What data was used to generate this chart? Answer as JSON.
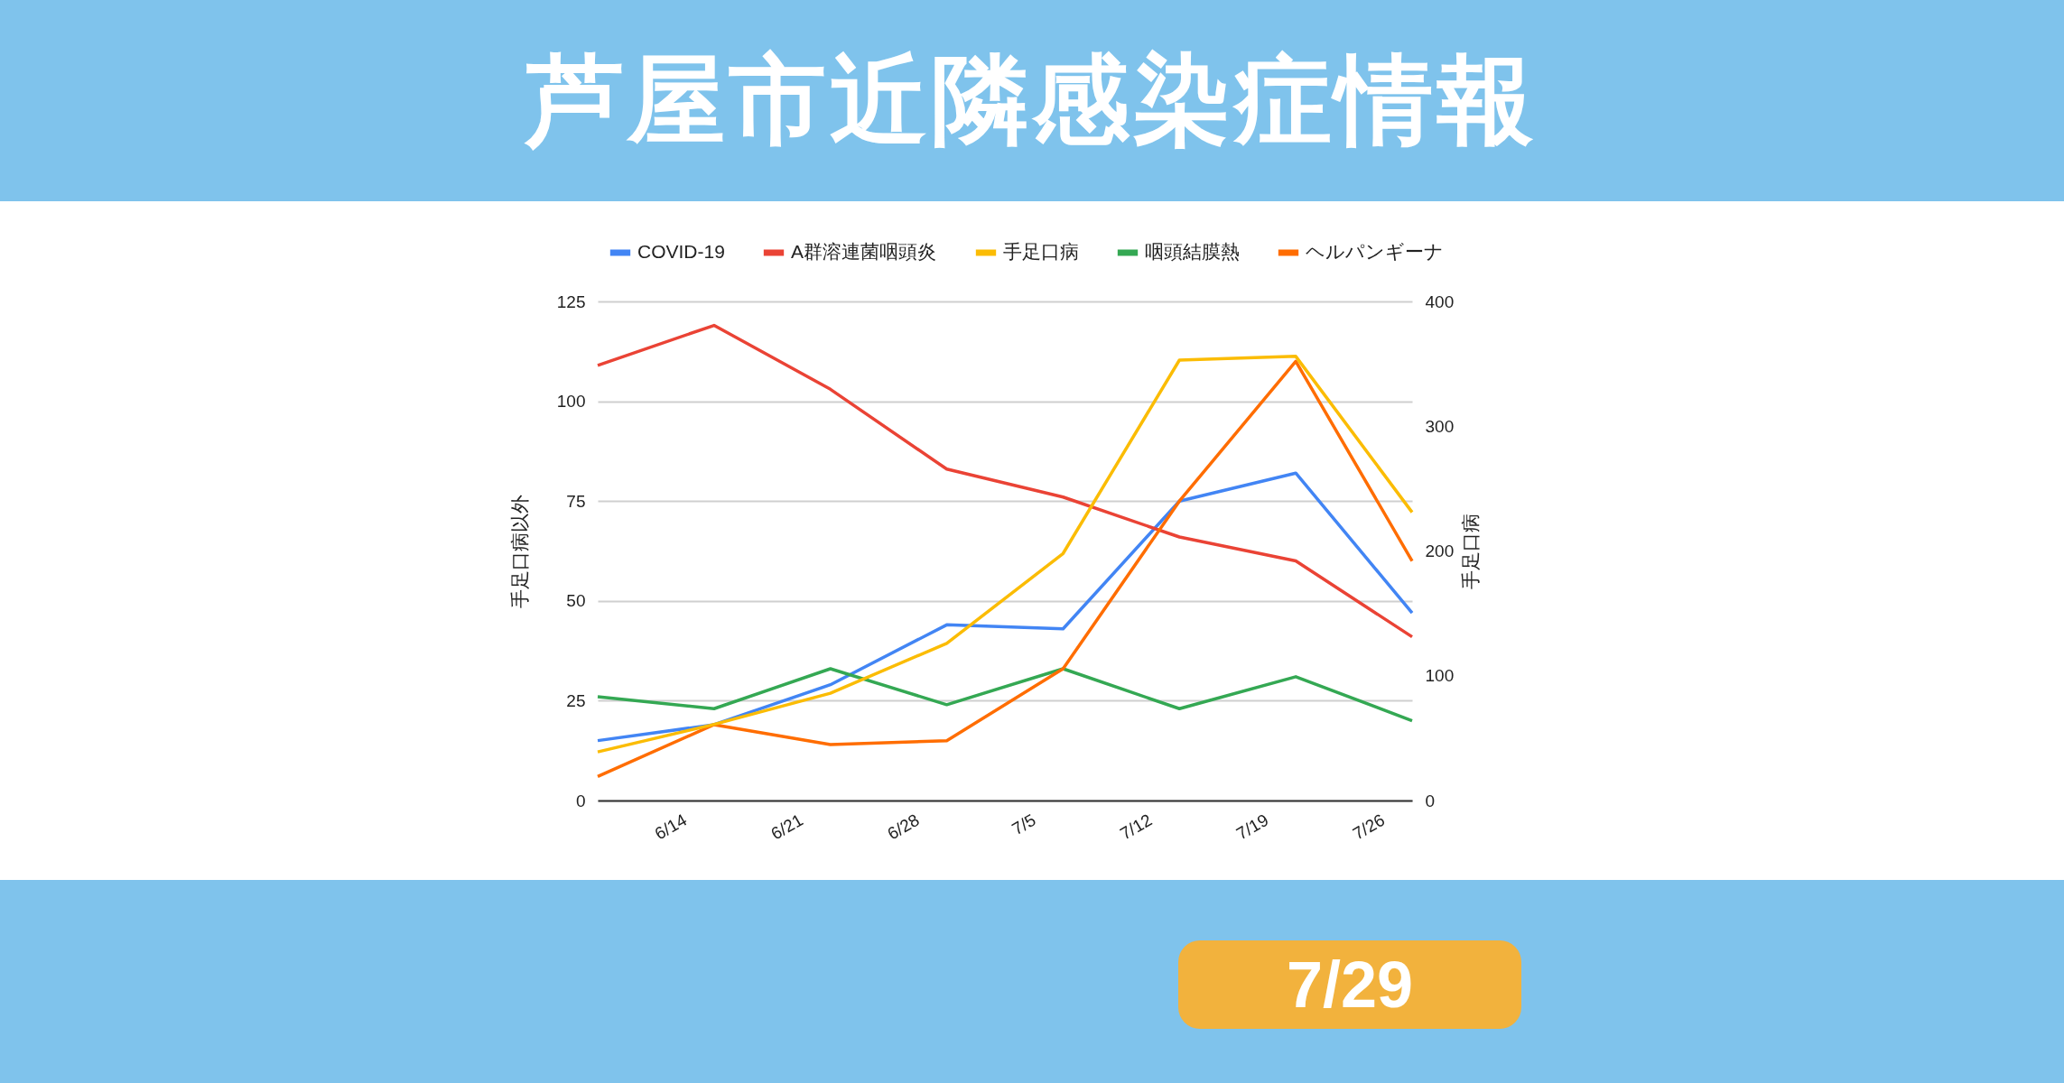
{
  "chart_data": {
    "type": "line",
    "title": "芦屋市近隣感染症情報",
    "annotations": [
      "7/29"
    ],
    "ylabel": "手足口病以外",
    "y2label": "手足口病",
    "x": [
      "--06-09",
      "--06-16",
      "--06-23",
      "--06-30",
      "--07-07",
      "--07-14",
      "--07-21",
      "--07-28"
    ],
    "xlim": [
      "--06-09",
      "--07-28"
    ],
    "xticks": [
      {
        "value": "--06-14",
        "label": "6/14"
      },
      {
        "value": "--06-21",
        "label": "6/21"
      },
      {
        "value": "--06-28",
        "label": "6/28"
      },
      {
        "value": "--07-05",
        "label": "7/5"
      },
      {
        "value": "--07-12",
        "label": "7/12"
      },
      {
        "value": "--07-19",
        "label": "7/19"
      },
      {
        "value": "--07-26",
        "label": "7/26"
      }
    ],
    "ylim": [
      0,
      125
    ],
    "yticks": [
      0,
      25,
      50,
      75,
      100,
      125
    ],
    "y2lim": [
      0,
      400
    ],
    "y2ticks": [
      0,
      100,
      200,
      300,
      400
    ],
    "grid": "y",
    "legend": "top",
    "series": [
      {
        "name": "COVID-19",
        "color": "#4285f4",
        "values": [
          15,
          19,
          29,
          44,
          43,
          75,
          82,
          47
        ]
      },
      {
        "name": "A群溶連菌咽頭炎",
        "color": "#ea4335",
        "values": [
          109,
          119,
          103,
          83,
          76,
          66,
          60,
          41
        ]
      },
      {
        "name": "手足口病",
        "color": "#fbbc04",
        "axis": "y2",
        "values": [
          39,
          61,
          86,
          126,
          198,
          353,
          356,
          231
        ]
      },
      {
        "name": "咽頭結膜熱",
        "color": "#34a853",
        "values": [
          26,
          23,
          33,
          24,
          33,
          23,
          31,
          20
        ]
      },
      {
        "name": "ヘルパンギーナ",
        "color": "#ff6d01",
        "values": [
          6,
          19,
          14,
          15,
          33,
          75,
          110,
          60
        ]
      }
    ]
  }
}
